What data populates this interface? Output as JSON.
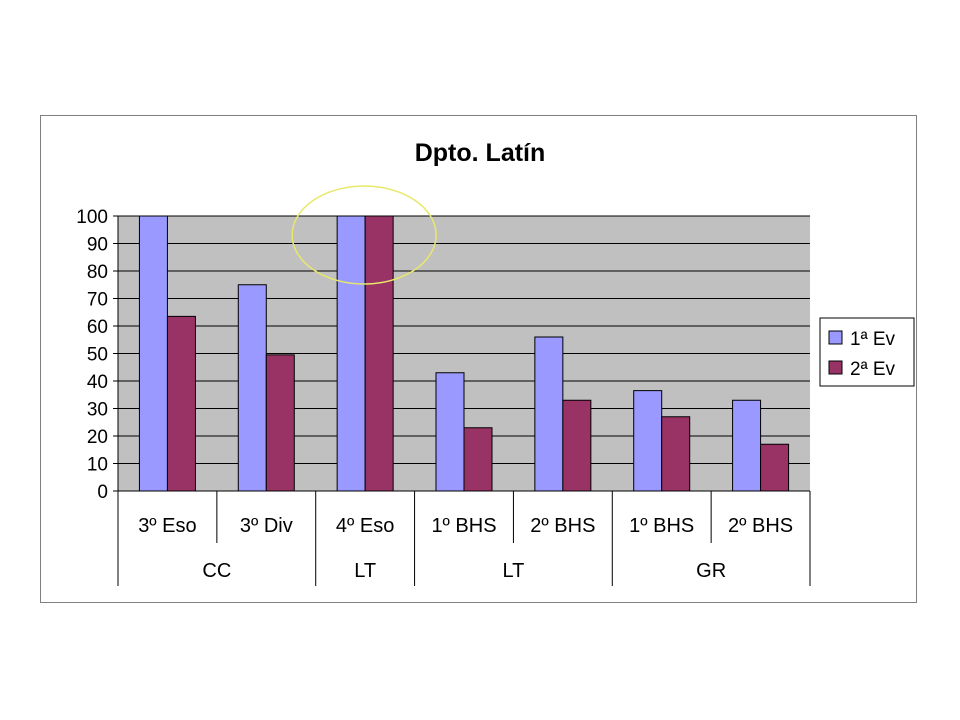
{
  "chart_data": {
    "type": "bar",
    "title": "Dpto. Latín",
    "xlabel": "",
    "ylabel": "",
    "ylim": [
      0,
      100
    ],
    "yticks": [
      "0",
      "10",
      "20",
      "30",
      "40",
      "50",
      "60",
      "70",
      "80",
      "90",
      "100"
    ],
    "grid": true,
    "legend_position": "right",
    "categories": [
      "3º Eso",
      "3º Div",
      "4º Eso",
      "1º BHS",
      "2º BHS",
      "1º BHS",
      "2º BHS"
    ],
    "groups": [
      {
        "label": "CC",
        "span": 2
      },
      {
        "label": "LT",
        "span": 1
      },
      {
        "label": "LT",
        "span": 2
      },
      {
        "label": "GR",
        "span": 2
      }
    ],
    "series": [
      {
        "name": "1ª Ev",
        "color": "#9999ff",
        "values": [
          100,
          75,
          100,
          43,
          56,
          36.5,
          33
        ]
      },
      {
        "name": "2ª Ev",
        "color": "#993366",
        "values": [
          63.5,
          49.5,
          100,
          23,
          33,
          27,
          17
        ]
      }
    ],
    "colors": {
      "plot_background": "#c0c0c0",
      "highlight_ellipse": "#e8e86a"
    },
    "highlight": {
      "type": "ellipse",
      "category": "4º Eso"
    }
  }
}
